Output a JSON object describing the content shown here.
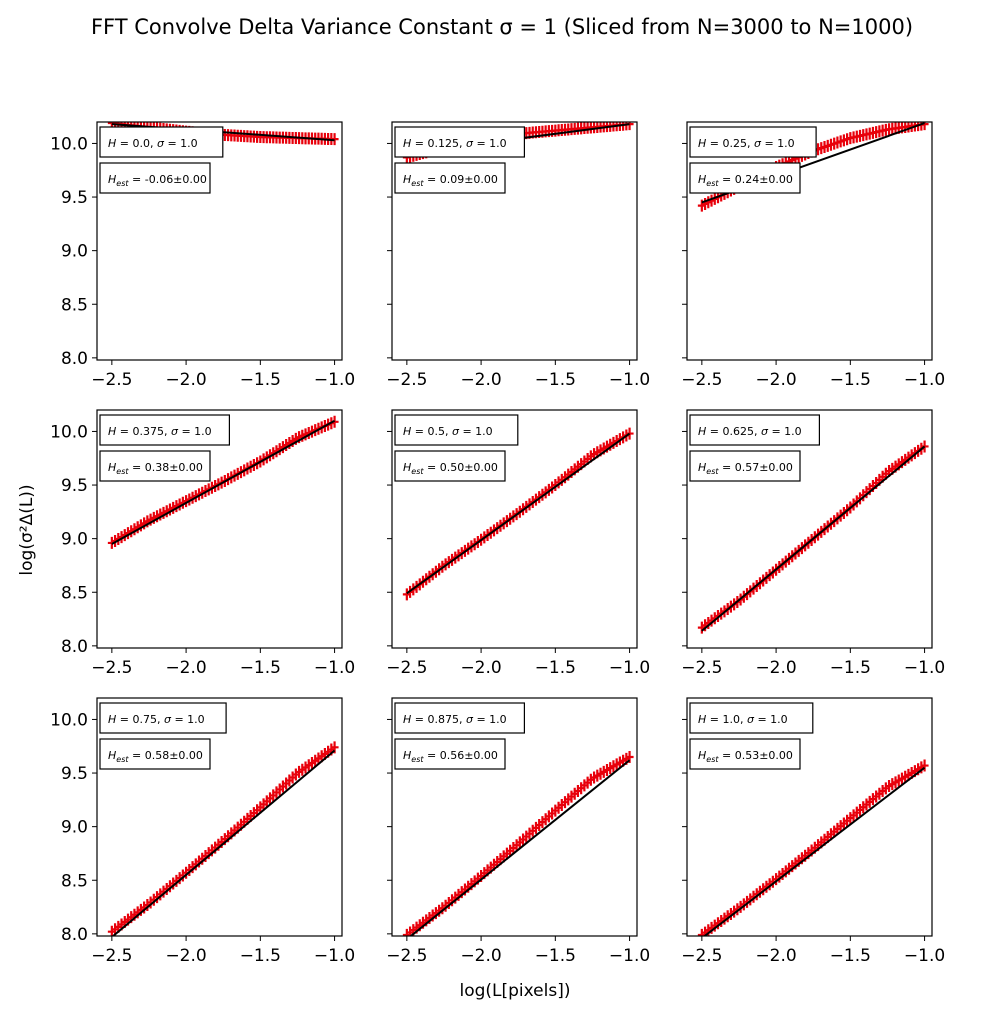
{
  "figure": {
    "title": "FFT Convolve Delta Variance Constant σ = 1 (Sliced from N=3000 to N=1000)",
    "xlabel": "log(L[pixels])",
    "ylabel": "log(σ²Δ(L))"
  },
  "colors": {
    "data": "#e8000b",
    "fit": "#000000"
  },
  "chart_data": [
    {
      "type": "line",
      "label1": "H = 0.0, σ = 1.0",
      "label2": "H_est = -0.06±0.00",
      "x_range": [
        -2.5,
        -1.0
      ],
      "fit_y": [
        10.18,
        10.03
      ],
      "data_y": [
        10.19,
        10.15,
        10.11,
        10.08,
        10.06,
        10.05,
        10.04
      ],
      "xlim": [
        -2.6,
        -0.95
      ],
      "ylim": [
        7.98,
        10.2
      ],
      "xticks": [
        -2.5,
        -2.0,
        -1.5,
        -1.0
      ],
      "yticks": [
        8.0,
        8.5,
        9.0,
        9.5,
        10.0
      ],
      "ytick_labels_shown": true
    },
    {
      "type": "line",
      "label1": "H = 0.125, σ = 1.0",
      "label2": "H_est = 0.09±0.00",
      "x_range": [
        -2.5,
        -1.0
      ],
      "fit_y": [
        9.91,
        10.18
      ],
      "data_y": [
        9.87,
        9.96,
        10.04,
        10.09,
        10.12,
        10.15,
        10.18
      ],
      "xlim": [
        -2.6,
        -0.95
      ],
      "ylim": [
        7.98,
        10.2
      ],
      "xticks": [
        -2.5,
        -2.0,
        -1.5,
        -1.0
      ],
      "yticks": [
        8.0,
        8.5,
        9.0,
        9.5,
        10.0
      ],
      "ytick_labels_shown": false
    },
    {
      "type": "line",
      "label1": "H = 0.25, σ = 1.0",
      "label2": "H_est = 0.24±0.00",
      "x_range": [
        -2.5,
        -1.0
      ],
      "fit_y": [
        9.45,
        10.19
      ],
      "data_y": [
        9.42,
        9.6,
        9.78,
        9.93,
        10.05,
        10.13,
        10.18
      ],
      "xlim": [
        -2.6,
        -0.95
      ],
      "ylim": [
        7.98,
        10.2
      ],
      "xticks": [
        -2.5,
        -2.0,
        -1.5,
        -1.0
      ],
      "yticks": [
        8.0,
        8.5,
        9.0,
        9.5,
        10.0
      ],
      "ytick_labels_shown": false
    },
    {
      "type": "line",
      "label1": "H = 0.375, σ = 1.0",
      "label2": "H_est = 0.38±0.00",
      "x_range": [
        -2.5,
        -1.0
      ],
      "fit_y": [
        8.95,
        10.1
      ],
      "data_y": [
        8.96,
        9.17,
        9.35,
        9.53,
        9.72,
        9.94,
        10.09
      ],
      "xlim": [
        -2.6,
        -0.95
      ],
      "ylim": [
        7.98,
        10.2
      ],
      "xticks": [
        -2.5,
        -2.0,
        -1.5,
        -1.0
      ],
      "yticks": [
        8.0,
        8.5,
        9.0,
        9.5,
        10.0
      ],
      "ytick_labels_shown": true
    },
    {
      "type": "line",
      "label1": "H = 0.5, σ = 1.0",
      "label2": "H_est = 0.50±0.00",
      "x_range": [
        -2.5,
        -1.0
      ],
      "fit_y": [
        8.49,
        9.98
      ],
      "data_y": [
        8.48,
        8.75,
        8.99,
        9.24,
        9.5,
        9.78,
        9.98
      ],
      "xlim": [
        -2.6,
        -0.95
      ],
      "ylim": [
        7.98,
        10.2
      ],
      "xticks": [
        -2.5,
        -2.0,
        -1.5,
        -1.0
      ],
      "yticks": [
        8.0,
        8.5,
        9.0,
        9.5,
        10.0
      ],
      "ytick_labels_shown": false
    },
    {
      "type": "line",
      "label1": "H = 0.625, σ = 1.0",
      "label2": "H_est = 0.57±0.00",
      "x_range": [
        -2.5,
        -1.0
      ],
      "fit_y": [
        8.14,
        9.86
      ],
      "data_y": [
        8.17,
        8.42,
        8.71,
        9.0,
        9.29,
        9.62,
        9.86
      ],
      "xlim": [
        -2.6,
        -0.95
      ],
      "ylim": [
        7.98,
        10.2
      ],
      "xticks": [
        -2.5,
        -2.0,
        -1.5,
        -1.0
      ],
      "yticks": [
        8.0,
        8.5,
        9.0,
        9.5,
        10.0
      ],
      "ytick_labels_shown": false
    },
    {
      "type": "line",
      "label1": "H = 0.75, σ = 1.0",
      "label2": "H_est = 0.58±0.00",
      "x_range": [
        -2.5,
        -1.0
      ],
      "fit_y": [
        7.97,
        9.71
      ],
      "data_y": [
        8.02,
        8.28,
        8.57,
        8.87,
        9.18,
        9.5,
        9.74
      ],
      "xlim": [
        -2.6,
        -0.95
      ],
      "ylim": [
        7.98,
        10.2
      ],
      "xticks": [
        -2.5,
        -2.0,
        -1.5,
        -1.0
      ],
      "yticks": [
        8.0,
        8.5,
        9.0,
        9.5,
        10.0
      ],
      "ytick_labels_shown": true
    },
    {
      "type": "line",
      "label1": "H = 0.875, σ = 1.0",
      "label2": "H_est = 0.56±0.00",
      "x_range": [
        -2.5,
        -1.0
      ],
      "fit_y": [
        7.95,
        9.62
      ],
      "data_y": [
        7.99,
        8.25,
        8.54,
        8.84,
        9.15,
        9.45,
        9.65
      ],
      "xlim": [
        -2.6,
        -0.95
      ],
      "ylim": [
        7.98,
        10.2
      ],
      "xticks": [
        -2.5,
        -2.0,
        -1.5,
        -1.0
      ],
      "yticks": [
        8.0,
        8.5,
        9.0,
        9.5,
        10.0
      ],
      "ytick_labels_shown": false
    },
    {
      "type": "line",
      "label1": "H = 1.0, σ = 1.0",
      "label2": "H_est = 0.53±0.00",
      "x_range": [
        -2.5,
        -1.0
      ],
      "fit_y": [
        7.96,
        9.55
      ],
      "data_y": [
        7.99,
        8.24,
        8.51,
        8.79,
        9.08,
        9.37,
        9.57
      ],
      "xlim": [
        -2.6,
        -0.95
      ],
      "ylim": [
        7.98,
        10.2
      ],
      "xticks": [
        -2.5,
        -2.0,
        -1.5,
        -1.0
      ],
      "yticks": [
        8.0,
        8.5,
        9.0,
        9.5,
        10.0
      ],
      "ytick_labels_shown": false
    }
  ]
}
